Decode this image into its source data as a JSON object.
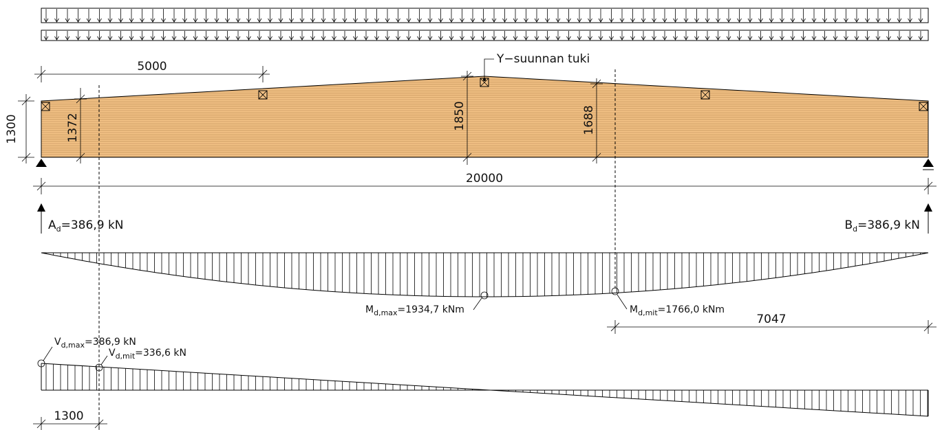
{
  "support_label": "Y−suunnan tuki",
  "dims": {
    "purlin_spacing": "5000",
    "end_height": "1300",
    "height_at_check": "1372",
    "apex_height": "1850",
    "height_at_mit": "1688",
    "span": "20000",
    "mit_distance": "7047",
    "shear_check_distance": "1300"
  },
  "reactions": {
    "A": {
      "symbol": "A",
      "subscript": "d",
      "value": "=386,9  kN"
    },
    "B": {
      "symbol": "B",
      "subscript": "d",
      "value": "=386,9  kN"
    }
  },
  "moment": {
    "max": {
      "symbol": "M",
      "subscript": "d,max",
      "value": "=1934,7  kNm"
    },
    "mit": {
      "symbol": "M",
      "subscript": "d,mit",
      "value": "=1766,0  kNm"
    }
  },
  "shear": {
    "max": {
      "symbol": "V",
      "subscript": "d,max",
      "value": "=386,9  kN"
    },
    "mit": {
      "symbol": "V",
      "subscript": "d,mit",
      "value": "=336,6  kN"
    }
  },
  "colors": {
    "timber": "#f1c084",
    "lamination": "#b98a52",
    "line": "#000000"
  }
}
